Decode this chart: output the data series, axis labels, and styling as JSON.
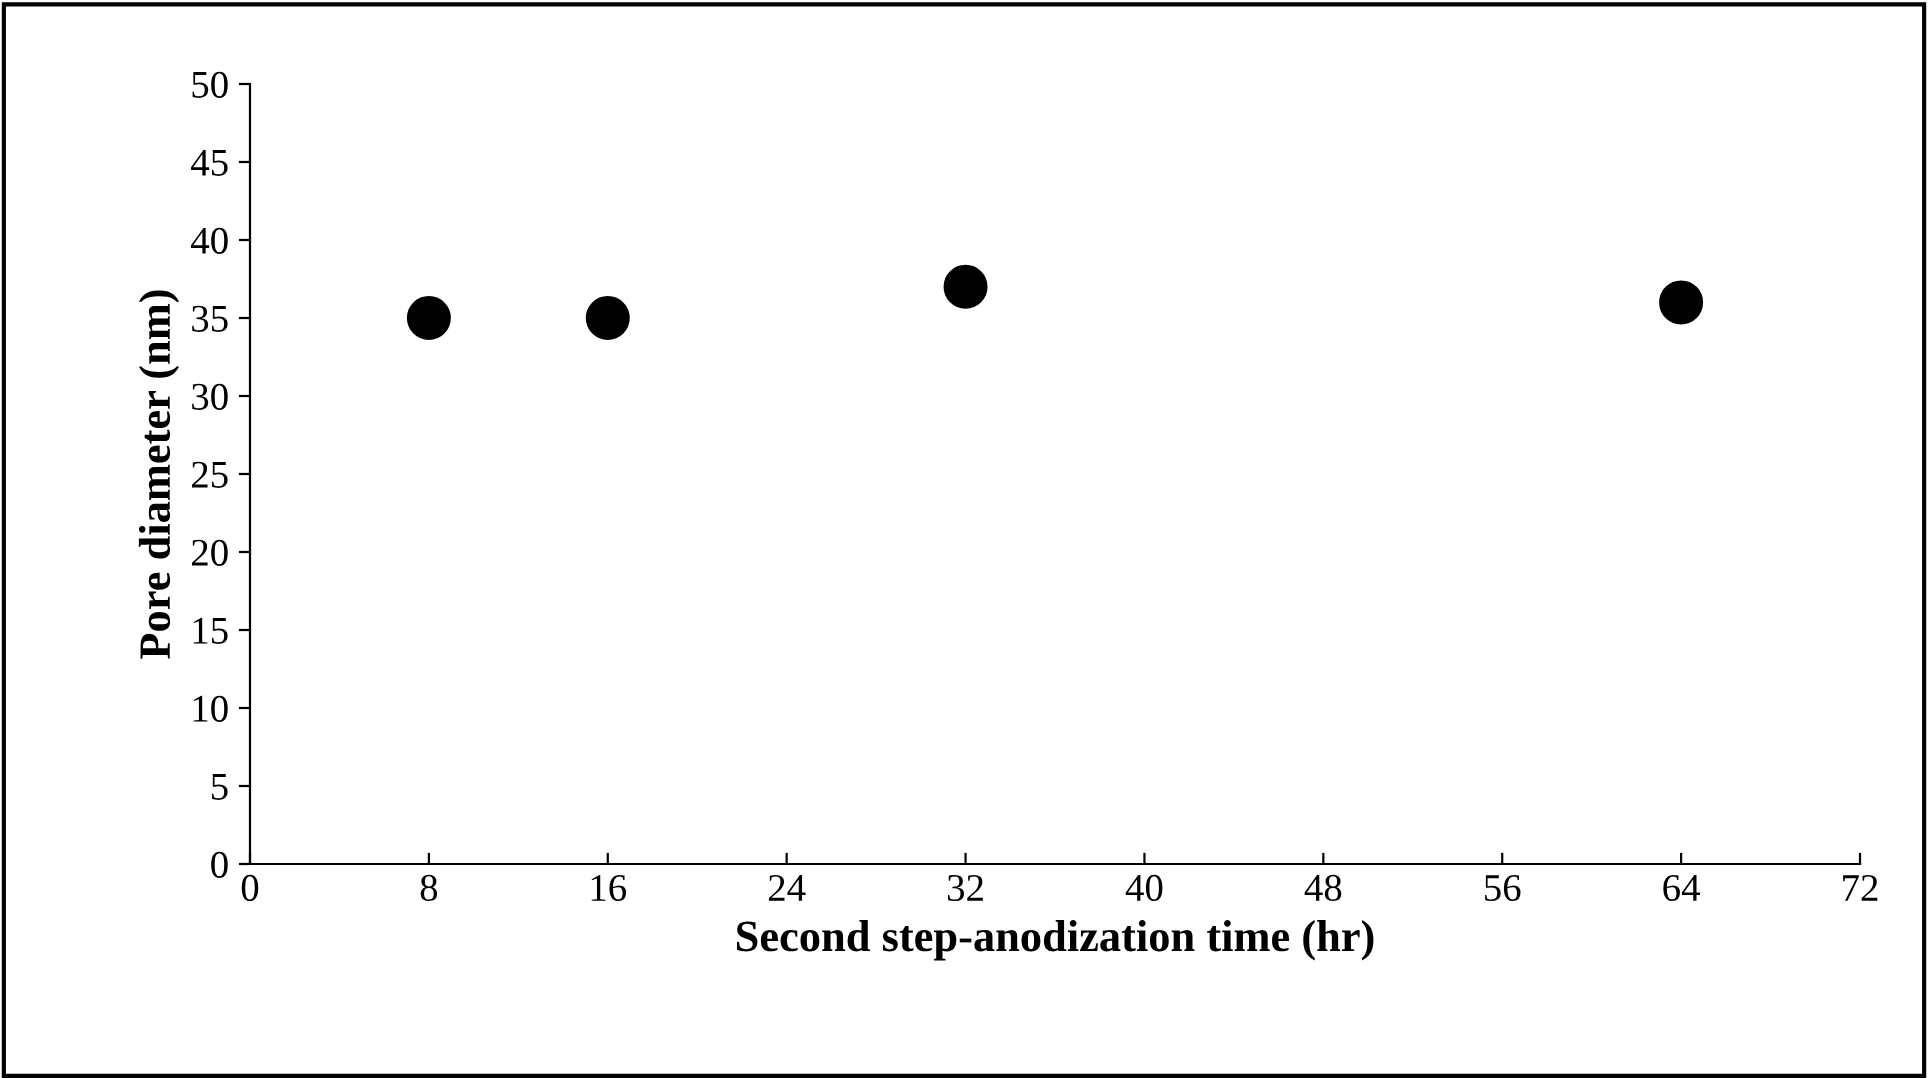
{
  "chart_data": {
    "type": "scatter",
    "xlabel": "Second step-anodization time (hr)",
    "ylabel": "Pore diameter (nm)",
    "x": [
      8,
      16,
      32,
      64
    ],
    "series": [
      {
        "color": "#000000",
        "values": [
          35,
          35,
          37,
          36
        ]
      }
    ],
    "xlim": [
      0,
      72
    ],
    "xticks": [
      0,
      8,
      16,
      24,
      32,
      40,
      48,
      56,
      64,
      72
    ],
    "ylim": [
      0,
      50
    ],
    "yticks": [
      0,
      5,
      10,
      15,
      20,
      25,
      30,
      35,
      40,
      45,
      50
    ],
    "marker": "circle",
    "grid": false,
    "legend": false
  }
}
